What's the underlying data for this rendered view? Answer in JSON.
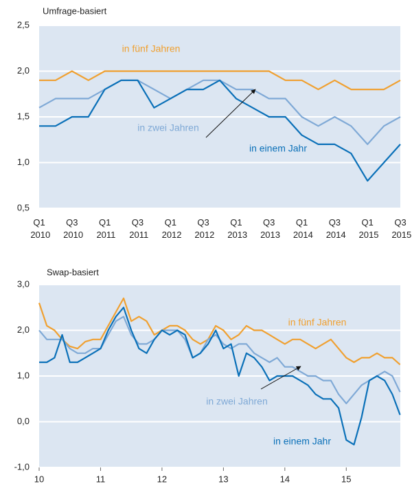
{
  "chart_data": [
    {
      "type": "line",
      "title": "Umfrage-basiert",
      "categories": [
        "Q1 2010",
        null,
        "Q3 2010",
        null,
        "Q1 2011",
        null,
        "Q3 2011",
        null,
        "Q1 2012",
        null,
        "Q3 2012",
        null,
        "Q1 2013",
        null,
        "Q3 2013",
        null,
        "Q1 2014",
        null,
        "Q3 2014",
        null,
        "Q1 2015",
        null,
        "Q3 2015"
      ],
      "series": [
        {
          "name": "in fünf Jahren",
          "color": "#f0a030",
          "values": [
            1.9,
            1.9,
            2.0,
            1.9,
            2.0,
            2.0,
            2.0,
            2.0,
            2.0,
            2.0,
            2.0,
            2.0,
            2.0,
            2.0,
            2.0,
            1.9,
            1.9,
            1.8,
            1.9,
            1.8,
            1.8,
            1.8,
            1.9
          ]
        },
        {
          "name": "in zwei Jahren",
          "color": "#7fa9d6",
          "values": [
            1.6,
            1.7,
            1.7,
            1.7,
            1.8,
            1.9,
            1.9,
            1.8,
            1.7,
            1.8,
            1.9,
            1.9,
            1.8,
            1.8,
            1.7,
            1.7,
            1.5,
            1.4,
            1.5,
            1.4,
            1.2,
            1.4,
            1.5
          ]
        },
        {
          "name": "in einem Jahr",
          "color": "#0a70b8",
          "values": [
            1.4,
            1.4,
            1.5,
            1.5,
            1.8,
            1.9,
            1.9,
            1.6,
            1.7,
            1.8,
            1.8,
            1.9,
            1.7,
            1.6,
            1.5,
            1.5,
            1.3,
            1.2,
            1.2,
            1.1,
            0.8,
            1.0,
            1.2
          ]
        }
      ],
      "ylim": [
        0.5,
        2.5
      ],
      "yticks": [
        {
          "value": 0.5,
          "label": "0,5"
        },
        {
          "value": 1.0,
          "label": "1,0"
        },
        {
          "value": 1.5,
          "label": "1,5"
        },
        {
          "value": 2.0,
          "label": "2,0"
        },
        {
          "value": 2.5,
          "label": "2,5"
        }
      ],
      "grid": true
    },
    {
      "type": "line",
      "title": "Swap-basiert",
      "x": [
        10.0,
        10.125,
        10.25,
        10.375,
        10.5,
        10.625,
        10.75,
        10.875,
        11.0,
        11.125,
        11.25,
        11.375,
        11.5,
        11.625,
        11.75,
        11.875,
        12.0,
        12.125,
        12.25,
        12.375,
        12.5,
        12.625,
        12.75,
        12.875,
        13.0,
        13.125,
        13.25,
        13.375,
        13.5,
        13.625,
        13.75,
        13.875,
        14.0,
        14.125,
        14.25,
        14.375,
        14.5,
        14.625,
        14.75,
        14.875,
        15.0,
        15.125,
        15.25,
        15.375,
        15.5,
        15.625,
        15.75,
        15.875
      ],
      "series": [
        {
          "name": "in fünf Jahren",
          "color": "#f0a030",
          "values": [
            2.6,
            2.1,
            2.0,
            1.8,
            1.65,
            1.6,
            1.75,
            1.8,
            1.8,
            2.1,
            2.4,
            2.7,
            2.2,
            2.3,
            2.2,
            1.9,
            2.0,
            2.1,
            2.1,
            2.0,
            1.8,
            1.7,
            1.8,
            2.1,
            2.0,
            1.8,
            1.9,
            2.1,
            2.0,
            2.0,
            1.9,
            1.8,
            1.7,
            1.8,
            1.8,
            1.7,
            1.6,
            1.7,
            1.8,
            1.6,
            1.4,
            1.3,
            1.4,
            1.4,
            1.5,
            1.4,
            1.4,
            1.25
          ]
        },
        {
          "name": "in zwei Jahren",
          "color": "#7fa9d6",
          "values": [
            2.0,
            1.8,
            1.8,
            1.8,
            1.6,
            1.5,
            1.5,
            1.6,
            1.6,
            1.9,
            2.2,
            2.3,
            1.9,
            1.7,
            1.7,
            1.8,
            2.0,
            2.0,
            2.0,
            1.8,
            1.4,
            1.5,
            1.8,
            1.9,
            1.7,
            1.6,
            1.7,
            1.7,
            1.5,
            1.4,
            1.3,
            1.4,
            1.2,
            1.2,
            1.1,
            1.0,
            1.0,
            0.9,
            0.9,
            0.6,
            0.4,
            0.6,
            0.8,
            0.9,
            1.0,
            1.1,
            1.0,
            0.65
          ]
        },
        {
          "name": "in einem Jahr",
          "color": "#0a70b8",
          "values": [
            1.3,
            1.3,
            1.4,
            1.9,
            1.3,
            1.3,
            1.4,
            1.5,
            1.6,
            2.0,
            2.3,
            2.5,
            2.0,
            1.6,
            1.5,
            1.8,
            2.0,
            1.9,
            2.0,
            1.9,
            1.4,
            1.5,
            1.7,
            2.0,
            1.6,
            1.7,
            1.0,
            1.5,
            1.4,
            1.2,
            0.9,
            1.0,
            1.0,
            1.0,
            0.9,
            0.8,
            0.6,
            0.5,
            0.5,
            0.3,
            -0.4,
            -0.5,
            0.1,
            0.9,
            1.0,
            0.9,
            0.6,
            0.15
          ]
        }
      ],
      "xlim": [
        10,
        15.88
      ],
      "xticks": [
        10,
        11,
        12,
        13,
        14,
        15
      ],
      "ylim": [
        -1.0,
        3.0
      ],
      "yticks": [
        {
          "value": -1.0,
          "label": "-1,0"
        },
        {
          "value": 0.0,
          "label": "0,0"
        },
        {
          "value": 1.0,
          "label": "1,0"
        },
        {
          "value": 2.0,
          "label": "2,0"
        },
        {
          "value": 3.0,
          "label": "3,0"
        }
      ],
      "grid": true
    }
  ]
}
